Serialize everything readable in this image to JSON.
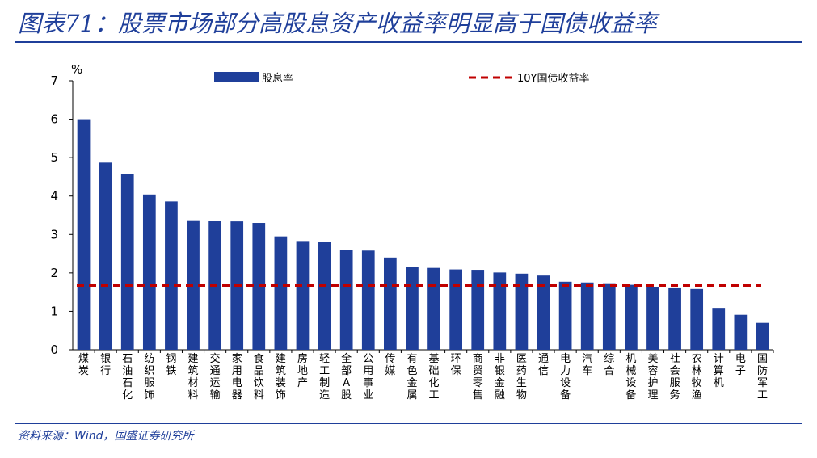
{
  "title": "图表71：股票市场部分高股息资产收益率明显高于国债收益率",
  "source": "资料来源：Wind，国盛证券研究所",
  "colors": {
    "bar": "#1f3f9a",
    "line": "#c00000",
    "title": "#1f3f9a"
  },
  "chart_data": {
    "type": "bar",
    "ylabel": "%",
    "ylim": [
      0,
      7
    ],
    "yticks": [
      0,
      1,
      2,
      3,
      4,
      5,
      6,
      7
    ],
    "grid": false,
    "legend_position": "top",
    "categories": [
      "煤炭",
      "银行",
      "石油石化",
      "纺织服饰",
      "钢铁",
      "建筑材料",
      "交通运输",
      "家用电器",
      "食品饮料",
      "建筑装饰",
      "房地产",
      "轻工制造",
      "全部A股",
      "公用事业",
      "传媒",
      "有色金属",
      "基础化工",
      "环保",
      "商贸零售",
      "非银金融",
      "医药生物",
      "通信",
      "电力设备",
      "汽车",
      "综合",
      "机械设备",
      "美容护理",
      "社会服务",
      "农林牧渔",
      "计算机",
      "电子",
      "国防军工"
    ],
    "series": [
      {
        "name": "股息率",
        "kind": "bar",
        "values": [
          6.0,
          4.87,
          4.57,
          4.04,
          3.86,
          3.37,
          3.35,
          3.34,
          3.3,
          2.95,
          2.83,
          2.8,
          2.59,
          2.58,
          2.4,
          2.16,
          2.13,
          2.09,
          2.08,
          2.01,
          1.98,
          1.93,
          1.77,
          1.75,
          1.73,
          1.69,
          1.64,
          1.62,
          1.58,
          1.09,
          0.91,
          0.7
        ]
      },
      {
        "name": "10Y国债收益率",
        "kind": "line",
        "style": "dashed",
        "value": 1.67
      }
    ]
  }
}
